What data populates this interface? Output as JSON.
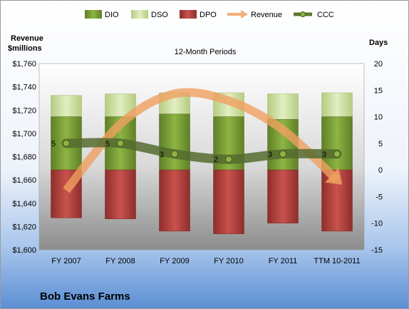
{
  "chart_data": {
    "type": "bar",
    "title": "12-Month Periods",
    "company": "Bob Evans Farms",
    "categories": [
      "FY 2007",
      "FY 2008",
      "FY 2009",
      "FY 2010",
      "FY 2011",
      "TTM 10-2011"
    ],
    "y_left_label": [
      "Revenue",
      "$millions"
    ],
    "y_right_label": "Days",
    "y_left_ticks": [
      "$1,600",
      "$1,620",
      "$1,640",
      "$1,660",
      "$1,680",
      "$1,700",
      "$1,720",
      "$1,740",
      "$1,760"
    ],
    "y_right_ticks": [
      "-15",
      "-10",
      "-5",
      "0",
      "5",
      "10",
      "15",
      "20"
    ],
    "y_left_range": [
      1600,
      1760
    ],
    "y_right_range": [
      -15,
      20
    ],
    "legend_position": "top",
    "series": [
      {
        "name": "DIO",
        "axis": "right",
        "type": "bar",
        "color": "#7c9f3a",
        "values": [
          10,
          10,
          10.5,
          10,
          9.5,
          10
        ]
      },
      {
        "name": "DSO",
        "axis": "right",
        "type": "bar",
        "color": "#cfe0a2",
        "values": [
          4,
          4.3,
          4,
          4.5,
          4.8,
          4.5
        ]
      },
      {
        "name": "DPO",
        "axis": "right",
        "type": "bar",
        "color": "#b94743",
        "values": [
          -9,
          -9.2,
          -11.5,
          -12,
          -10,
          -11.5
        ]
      },
      {
        "name": "Revenue",
        "axis": "left",
        "type": "line",
        "color": "#f0a060",
        "values": [
          1651,
          1708,
          1734,
          1728,
          1703,
          1660
        ]
      },
      {
        "name": "CCC",
        "axis": "right",
        "type": "line",
        "color": "#556b2f",
        "values": [
          5,
          5,
          3,
          2,
          3,
          3
        ]
      }
    ],
    "ccc_labels": [
      "5",
      "5",
      "3",
      "2",
      "3",
      "3"
    ]
  }
}
